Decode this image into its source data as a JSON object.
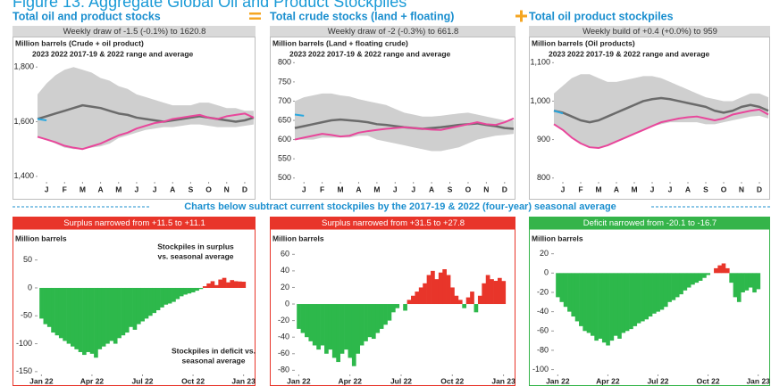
{
  "title": "Figure 13: Aggregate Global Oil and Product Stockpiles",
  "banner": "Charts below subtract current stockpiles by the 2017-19 & 2022 (four-year) seasonal average",
  "chart_data": [
    {
      "type": "line",
      "title": "Total oil and product stocks",
      "subtitle": "Weekly draw of -1.5 (-0.1%) to 1620.8",
      "y_label": "Million barrels (Crude + oil product)",
      "xlim": [
        0,
        12
      ],
      "xticks": [
        {
          "value": 0.5,
          "label": "J"
        },
        {
          "value": 1.5,
          "label": "F"
        },
        {
          "value": 2.5,
          "label": "M"
        },
        {
          "value": 3.5,
          "label": "A"
        },
        {
          "value": 4.5,
          "label": "M"
        },
        {
          "value": 5.5,
          "label": "J"
        },
        {
          "value": 6.5,
          "label": "J"
        },
        {
          "value": 7.5,
          "label": "A"
        },
        {
          "value": 8.5,
          "label": "S"
        },
        {
          "value": 9.5,
          "label": "O"
        },
        {
          "value": 10.5,
          "label": "N"
        },
        {
          "value": 11.5,
          "label": "D"
        }
      ],
      "ylim": [
        1380,
        1830
      ],
      "yticks": [
        {
          "value": 1400,
          "label": "1,400"
        },
        {
          "value": 1600,
          "label": "1,600"
        },
        {
          "value": 1800,
          "label": "1,800"
        }
      ],
      "x": [
        0,
        0.5,
        1,
        1.5,
        2,
        2.5,
        3,
        3.5,
        4,
        4.5,
        5,
        5.5,
        6,
        6.5,
        7,
        7.5,
        8,
        8.5,
        9,
        9.5,
        10,
        10.5,
        11,
        11.5,
        12
      ],
      "range": {
        "name": "2017-19 & 2022 range and average",
        "color": "#cfcfcf",
        "average_color": "#6b6b6b",
        "upper": [
          1700,
          1740,
          1770,
          1790,
          1800,
          1790,
          1780,
          1760,
          1750,
          1730,
          1720,
          1700,
          1690,
          1680,
          1670,
          1660,
          1660,
          1660,
          1670,
          1670,
          1660,
          1650,
          1650,
          1640,
          1640
        ],
        "lower": [
          1545,
          1535,
          1520,
          1505,
          1500,
          1500,
          1505,
          1510,
          1520,
          1540,
          1550,
          1560,
          1570,
          1575,
          1580,
          1580,
          1585,
          1590,
          1590,
          1585,
          1580,
          1580,
          1580,
          1585,
          1590
        ],
        "average": [
          1610,
          1620,
          1630,
          1640,
          1650,
          1660,
          1655,
          1650,
          1640,
          1630,
          1625,
          1615,
          1610,
          1605,
          1600,
          1605,
          1610,
          1615,
          1620,
          1615,
          1610,
          1605,
          1600,
          1605,
          1615
        ]
      },
      "series": [
        {
          "name": "2023",
          "color": "#29a8e0",
          "values": [
            1610,
            1605,
            null,
            null,
            null,
            null,
            null,
            null,
            null,
            null,
            null,
            null,
            null,
            null,
            null,
            null,
            null,
            null,
            null,
            null,
            null,
            null,
            null,
            null,
            null
          ]
        },
        {
          "name": "2022",
          "color": "#e8479b",
          "values": [
            1545,
            1535,
            1525,
            1512,
            1505,
            1500,
            1510,
            1520,
            1535,
            1550,
            1560,
            1575,
            1585,
            1595,
            1600,
            1610,
            1615,
            1620,
            1625,
            1615,
            1610,
            1620,
            1625,
            1630,
            1615
          ]
        }
      ]
    },
    {
      "type": "line",
      "title": "Total crude stocks (land + floating)",
      "subtitle": "Weekly draw of -2 (-0.3%) to 661.8",
      "y_label": "Million barrels (Land + floating crude)",
      "xlim": [
        0,
        12
      ],
      "xticks": [
        {
          "value": 0.5,
          "label": "J"
        },
        {
          "value": 1.5,
          "label": "F"
        },
        {
          "value": 2.5,
          "label": "M"
        },
        {
          "value": 3.5,
          "label": "A"
        },
        {
          "value": 4.5,
          "label": "M"
        },
        {
          "value": 5.5,
          "label": "J"
        },
        {
          "value": 6.5,
          "label": "J"
        },
        {
          "value": 7.5,
          "label": "A"
        },
        {
          "value": 8.5,
          "label": "S"
        },
        {
          "value": 9.5,
          "label": "O"
        },
        {
          "value": 10.5,
          "label": "N"
        },
        {
          "value": 11.5,
          "label": "D"
        }
      ],
      "ylim": [
        490,
        810
      ],
      "yticks": [
        500,
        550,
        600,
        650,
        700,
        750,
        800
      ],
      "x": [
        0,
        0.5,
        1,
        1.5,
        2,
        2.5,
        3,
        3.5,
        4,
        4.5,
        5,
        5.5,
        6,
        6.5,
        7,
        7.5,
        8,
        8.5,
        9,
        9.5,
        10,
        10.5,
        11,
        11.5,
        12
      ],
      "range": {
        "name": "2017-19 & 2022 range and average",
        "color": "#cfcfcf",
        "average_color": "#6b6b6b",
        "upper": [
          700,
          710,
          715,
          720,
          720,
          715,
          712,
          705,
          700,
          695,
          690,
          680,
          670,
          665,
          660,
          660,
          662,
          665,
          668,
          670,
          665,
          660,
          655,
          650,
          650
        ],
        "lower": [
          600,
          600,
          600,
          605,
          605,
          605,
          605,
          610,
          610,
          600,
          595,
          590,
          585,
          580,
          575,
          570,
          570,
          575,
          580,
          590,
          600,
          605,
          610,
          612,
          615
        ],
        "average": [
          630,
          635,
          640,
          645,
          650,
          652,
          650,
          648,
          645,
          640,
          638,
          635,
          632,
          630,
          628,
          630,
          632,
          635,
          638,
          640,
          642,
          638,
          635,
          630,
          628
        ]
      },
      "series": [
        {
          "name": "2023",
          "color": "#29a8e0",
          "values": [
            665,
            662,
            null,
            null,
            null,
            null,
            null,
            null,
            null,
            null,
            null,
            null,
            null,
            null,
            null,
            null,
            null,
            null,
            null,
            null,
            null,
            null,
            null,
            null,
            null
          ]
        },
        {
          "name": "2022",
          "color": "#e8479b",
          "values": [
            600,
            605,
            610,
            615,
            612,
            608,
            610,
            618,
            622,
            625,
            628,
            630,
            632,
            630,
            628,
            626,
            625,
            630,
            635,
            640,
            645,
            640,
            638,
            645,
            655
          ]
        }
      ]
    },
    {
      "type": "line",
      "title": "Total oil product stockpiles",
      "subtitle": "Weekly build of +0.4 (+0.0%) to 959",
      "y_label": "Million barrels (Oil products)",
      "xlim": [
        0,
        12
      ],
      "xticks": [
        {
          "value": 0.5,
          "label": "J"
        },
        {
          "value": 1.5,
          "label": "F"
        },
        {
          "value": 2.5,
          "label": "M"
        },
        {
          "value": 3.5,
          "label": "A"
        },
        {
          "value": 4.5,
          "label": "M"
        },
        {
          "value": 5.5,
          "label": "J"
        },
        {
          "value": 6.5,
          "label": "J"
        },
        {
          "value": 7.5,
          "label": "A"
        },
        {
          "value": 8.5,
          "label": "S"
        },
        {
          "value": 9.5,
          "label": "O"
        },
        {
          "value": 10.5,
          "label": "N"
        },
        {
          "value": 11.5,
          "label": "D"
        }
      ],
      "ylim": [
        790,
        1110
      ],
      "yticks": [
        800,
        900,
        {
          "value": 1000,
          "label": "1,000"
        },
        {
          "value": 1100,
          "label": "1,100"
        }
      ],
      "x": [
        0,
        0.5,
        1,
        1.5,
        2,
        2.5,
        3,
        3.5,
        4,
        4.5,
        5,
        5.5,
        6,
        6.5,
        7,
        7.5,
        8,
        8.5,
        9,
        9.5,
        10,
        10.5,
        11,
        11.5,
        12
      ],
      "range": {
        "name": "2017-19 & 2022 range and average",
        "color": "#cfcfcf",
        "average_color": "#6b6b6b",
        "upper": [
          1020,
          1040,
          1060,
          1070,
          1070,
          1060,
          1050,
          1050,
          1055,
          1060,
          1065,
          1065,
          1060,
          1050,
          1040,
          1030,
          1020,
          1010,
          1005,
          1000,
          1000,
          1010,
          1020,
          1020,
          1010
        ],
        "lower": [
          940,
          925,
          905,
          890,
          880,
          878,
          885,
          895,
          905,
          915,
          925,
          935,
          940,
          945,
          945,
          945,
          945,
          940,
          940,
          945,
          950,
          955,
          960,
          962,
          955
        ],
        "average": [
          975,
          970,
          960,
          950,
          945,
          950,
          960,
          970,
          980,
          990,
          1000,
          1005,
          1008,
          1005,
          1000,
          995,
          990,
          985,
          975,
          970,
          975,
          985,
          990,
          985,
          975
        ]
      },
      "series": [
        {
          "name": "2023",
          "color": "#29a8e0",
          "values": [
            975,
            968,
            null,
            null,
            null,
            null,
            null,
            null,
            null,
            null,
            null,
            null,
            null,
            null,
            null,
            null,
            null,
            null,
            null,
            null,
            null,
            null,
            null,
            null,
            null
          ]
        },
        {
          "name": "2022",
          "color": "#e8479b",
          "values": [
            940,
            925,
            905,
            890,
            880,
            878,
            885,
            895,
            905,
            915,
            925,
            935,
            945,
            950,
            955,
            958,
            960,
            955,
            950,
            955,
            965,
            970,
            975,
            978,
            965
          ]
        }
      ]
    },
    {
      "type": "bar",
      "title": "Surplus narrowed from +11.5 to +11.1",
      "title_color": "#e8352a",
      "y_label": "Million barrels",
      "color_positive": "#e8352a",
      "color_negative": "#2db84b",
      "xlim": [
        -1,
        53
      ],
      "xticks": [
        {
          "value": 0,
          "label": "Jan 22"
        },
        {
          "value": 13,
          "label": "Apr 22"
        },
        {
          "value": 26,
          "label": "Jul 22"
        },
        {
          "value": 39,
          "label": "Oct 22"
        },
        {
          "value": 52,
          "label": "Jan 23"
        }
      ],
      "ylim": [
        -155,
        75
      ],
      "yticks": [
        50,
        0,
        -50,
        -100,
        -150
      ],
      "x": [
        0,
        1,
        2,
        3,
        4,
        5,
        6,
        7,
        8,
        9,
        10,
        11,
        12,
        13,
        14,
        15,
        16,
        17,
        18,
        19,
        20,
        21,
        22,
        23,
        24,
        25,
        26,
        27,
        28,
        29,
        30,
        31,
        32,
        33,
        34,
        35,
        36,
        37,
        38,
        39,
        40,
        41,
        42,
        43,
        44,
        45,
        46,
        47,
        48,
        49,
        50,
        51,
        52
      ],
      "values": [
        -55,
        -65,
        -70,
        -80,
        -85,
        -90,
        -95,
        -100,
        -105,
        -110,
        -115,
        -120,
        -115,
        -118,
        -125,
        -110,
        -105,
        -100,
        -95,
        -100,
        -90,
        -85,
        -80,
        -70,
        -75,
        -65,
        -60,
        -55,
        -50,
        -45,
        -40,
        -35,
        -30,
        -28,
        -25,
        -20,
        -15,
        -12,
        -10,
        -8,
        -5,
        -2,
        3,
        8,
        12,
        5,
        15,
        18,
        10,
        14,
        12,
        11.5,
        11.1
      ],
      "annotations": [
        {
          "lines": [
            "Stockpiles in surplus",
            "vs. seasonal average"
          ],
          "color": "#e8352a"
        },
        {
          "lines": [
            "Stockpiles in deficit vs.",
            "seasonal average"
          ],
          "color": "#2db84b"
        }
      ]
    },
    {
      "type": "bar",
      "title": "Surplus narrowed from +31.5 to +27.8",
      "title_color": "#e8352a",
      "y_label": "Million barrels",
      "color_positive": "#e8352a",
      "color_negative": "#2db84b",
      "xlim": [
        -1,
        53
      ],
      "xticks": [
        {
          "value": 0,
          "label": "Jan 22"
        },
        {
          "value": 13,
          "label": "Apr 22"
        },
        {
          "value": 26,
          "label": "Jul 22"
        },
        {
          "value": 39,
          "label": "Oct 22"
        },
        {
          "value": 52,
          "label": "Jan 23"
        }
      ],
      "ylim": [
        -85,
        70
      ],
      "yticks": [
        60,
        40,
        20,
        0,
        -20,
        -40,
        -60,
        -80
      ],
      "x": [
        0,
        1,
        2,
        3,
        4,
        5,
        6,
        7,
        8,
        9,
        10,
        11,
        12,
        13,
        14,
        15,
        16,
        17,
        18,
        19,
        20,
        21,
        22,
        23,
        24,
        25,
        26,
        27,
        28,
        29,
        30,
        31,
        32,
        33,
        34,
        35,
        36,
        37,
        38,
        39,
        40,
        41,
        42,
        43,
        44,
        45,
        46,
        47,
        48,
        49,
        50,
        51,
        52
      ],
      "values": [
        -30,
        -35,
        -40,
        -45,
        -50,
        -55,
        -50,
        -60,
        -55,
        -65,
        -70,
        -60,
        -55,
        -65,
        -75,
        -60,
        -50,
        -45,
        -40,
        -42,
        -35,
        -30,
        -25,
        -20,
        -10,
        -5,
        0,
        -8,
        5,
        10,
        15,
        20,
        25,
        35,
        40,
        30,
        38,
        42,
        35,
        20,
        10,
        5,
        -5,
        8,
        15,
        -10,
        10,
        25,
        35,
        30,
        28,
        31.5,
        27.8
      ]
    },
    {
      "type": "bar",
      "title": "Deficit narrowed from -20.1 to -16.7",
      "title_color": "#35b44a",
      "y_label": "Million barrels",
      "color_positive": "#e8352a",
      "color_negative": "#2db84b",
      "xlim": [
        -1,
        53
      ],
      "xticks": [
        {
          "value": 0,
          "label": "Jan 22"
        },
        {
          "value": 13,
          "label": "Apr 22"
        },
        {
          "value": 26,
          "label": "Jul 22"
        },
        {
          "value": 39,
          "label": "Oct 22"
        },
        {
          "value": 52,
          "label": "Jan 23"
        }
      ],
      "ylim": [
        -105,
        28
      ],
      "yticks": [
        20,
        0,
        -20,
        -40,
        -60,
        -80,
        -100
      ],
      "x": [
        0,
        1,
        2,
        3,
        4,
        5,
        6,
        7,
        8,
        9,
        10,
        11,
        12,
        13,
        14,
        15,
        16,
        17,
        18,
        19,
        20,
        21,
        22,
        23,
        24,
        25,
        26,
        27,
        28,
        29,
        30,
        31,
        32,
        33,
        34,
        35,
        36,
        37,
        38,
        39,
        40,
        41,
        42,
        43,
        44,
        45,
        46,
        47,
        48,
        49,
        50,
        51,
        52
      ],
      "values": [
        -25,
        -30,
        -35,
        -40,
        -45,
        -50,
        -55,
        -60,
        -62,
        -65,
        -70,
        -68,
        -72,
        -75,
        -70,
        -65,
        -68,
        -62,
        -60,
        -58,
        -55,
        -52,
        -50,
        -48,
        -45,
        -42,
        -40,
        -38,
        -35,
        -30,
        -28,
        -25,
        -22,
        -18,
        -15,
        -12,
        -10,
        -8,
        -5,
        -2,
        0,
        5,
        8,
        10,
        5,
        -10,
        -25,
        -30,
        -20,
        -18,
        -15,
        -20.1,
        -16.7
      ]
    }
  ]
}
